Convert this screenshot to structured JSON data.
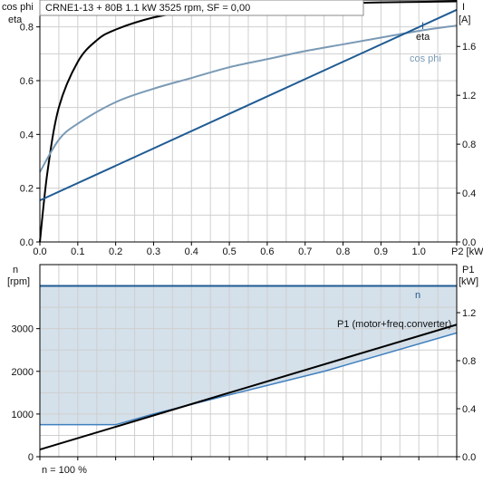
{
  "header": {
    "left_title_line1": "cos phi",
    "left_title_line2": "eta",
    "title": "CRNE1-13 + 80B   1.1 kW   3525 rpm, SF = 0,00",
    "right_title_line1": "I",
    "right_title_line2": "[A]"
  },
  "bottom_panel": {
    "left_title_line1": "n",
    "left_title_line2": "[rpm]",
    "right_title_line1": "P1",
    "right_title_line2": "[kW]",
    "footer": "n = 100 %"
  },
  "colors": {
    "eta": "#000000",
    "cosphi": "#7a9ab5",
    "current": "#1f5b93",
    "speed": "#1f5b93",
    "fill": "#d4e0ea",
    "p1": "#000000",
    "converter": "#3f7fbf"
  },
  "chart_data": [
    {
      "type": "line",
      "xlabel": "P2 [kW]",
      "x_ticks": [
        "0.0",
        "0.1",
        "0.2",
        "0.3",
        "0.4",
        "0.5",
        "0.6",
        "0.7",
        "0.8",
        "0.9",
        "1.0",
        "P2 [kW]"
      ],
      "xlim": [
        0,
        1.1
      ],
      "ylim_left": [
        0,
        0.9
      ],
      "y_ticks_left": [
        "0.0",
        "0.2",
        "0.4",
        "0.6",
        "0.8"
      ],
      "ylim_right": [
        0,
        1.98
      ],
      "y_ticks_right": [
        "0.0",
        "0.4",
        "0.8",
        "1.2",
        "1.6"
      ],
      "grid": true,
      "series": [
        {
          "name": "eta",
          "axis": "left",
          "x": [
            0,
            0.02,
            0.05,
            0.1,
            0.15,
            0.2,
            0.3,
            0.4,
            0.5,
            0.6,
            0.7,
            0.8,
            0.9,
            1.0,
            1.1
          ],
          "values": [
            0.0,
            0.26,
            0.5,
            0.67,
            0.75,
            0.79,
            0.835,
            0.858,
            0.87,
            0.878,
            0.884,
            0.888,
            0.891,
            0.893,
            0.895
          ]
        },
        {
          "name": "cos phi",
          "axis": "left",
          "x": [
            0,
            0.05,
            0.1,
            0.2,
            0.3,
            0.4,
            0.5,
            0.6,
            0.7,
            0.8,
            0.9,
            1.0,
            1.1
          ],
          "values": [
            0.26,
            0.38,
            0.44,
            0.52,
            0.57,
            0.61,
            0.65,
            0.68,
            0.71,
            0.735,
            0.76,
            0.785,
            0.805
          ]
        },
        {
          "name": "I",
          "axis": "right",
          "x": [
            0,
            1.1
          ],
          "values": [
            0.34,
            1.9
          ]
        }
      ]
    },
    {
      "type": "area",
      "xlim": [
        0,
        1.1
      ],
      "ylim_left": [
        0,
        4500
      ],
      "y_ticks_left": [
        "0",
        "1000",
        "2000",
        "3000"
      ],
      "ylim_right": [
        0,
        1.6
      ],
      "y_ticks_right": [
        "0.0",
        "0.4",
        "0.8",
        "1.2"
      ],
      "grid": true,
      "series": [
        {
          "name": "n",
          "axis": "left",
          "x": [
            0,
            1.1
          ],
          "values": [
            4000,
            4000
          ]
        },
        {
          "axis": "left",
          "x": [
            0,
            0.2,
            0.3,
            0.5,
            0.75,
            1.1
          ],
          "values": [
            750,
            750,
            1000,
            1450,
            2000,
            2900
          ]
        },
        {
          "name": "P1 (motor+freq.converter)",
          "axis": "right",
          "x": [
            0,
            1.1
          ],
          "values": [
            0.06,
            1.1
          ]
        }
      ]
    }
  ]
}
